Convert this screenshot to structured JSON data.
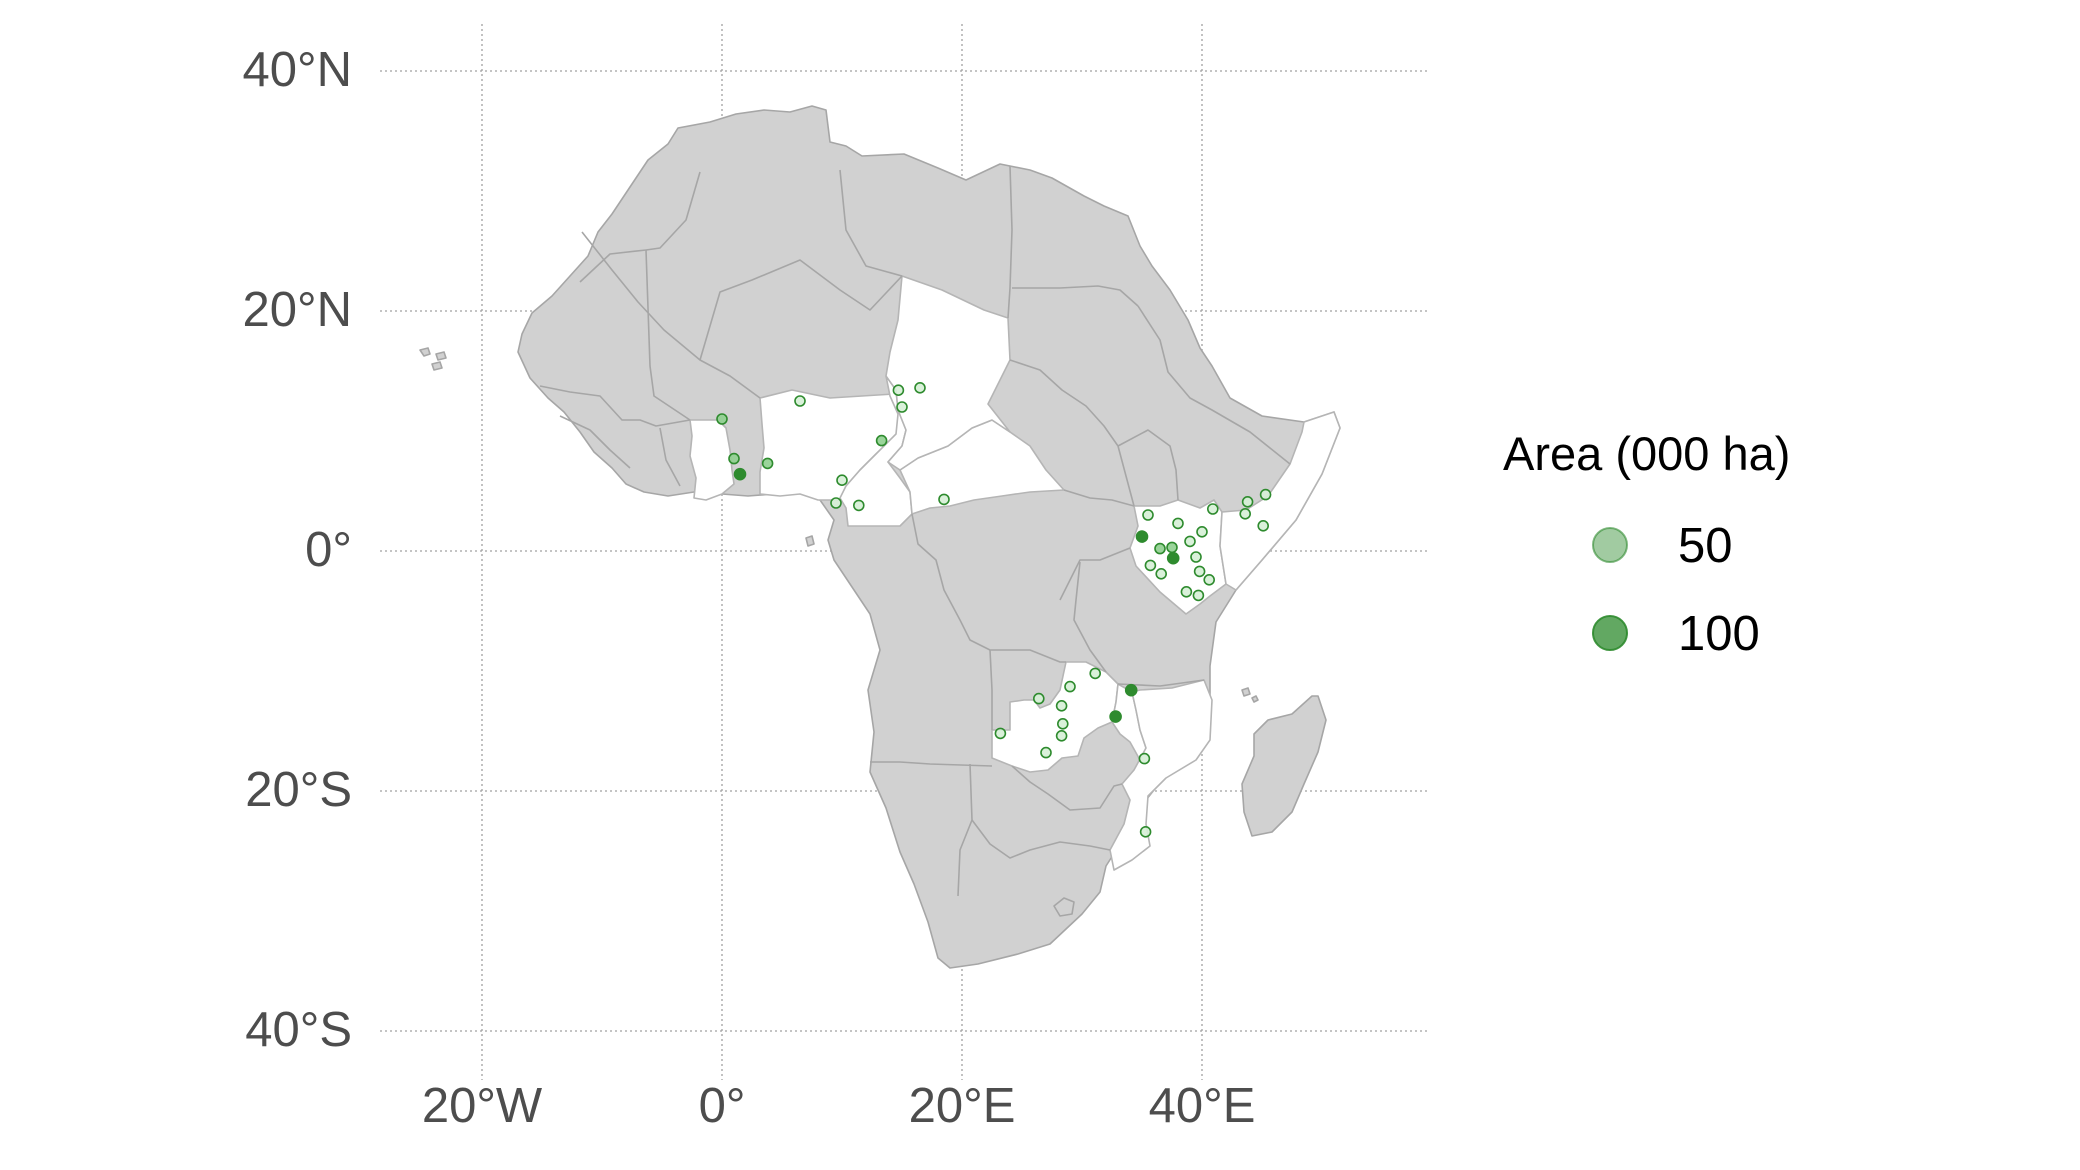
{
  "map": {
    "x_axis": {
      "ticks": [
        "20°W",
        "0°",
        "20°E",
        "40°E"
      ],
      "values": [
        -20,
        0,
        20,
        40
      ]
    },
    "y_axis": {
      "ticks": [
        "40°N",
        "20°N",
        "0°",
        "20°S",
        "40°S"
      ],
      "values": [
        40,
        20,
        0,
        -20,
        -40
      ]
    },
    "grid": "on",
    "colors": {
      "land": "#d1d1d1",
      "border": "#a6a6a6",
      "highlight_land": "#ffffff",
      "point": "#2e8b2e"
    },
    "highlighted_countries": [
      "Ghana",
      "Nigeria",
      "Cameroon",
      "Central African Republic",
      "Chad",
      "Kenya",
      "Somalia",
      "Zambia",
      "Malawi",
      "Mozambique"
    ],
    "legend": {
      "title": "Area (000 ha)",
      "position": "right",
      "items": [
        {
          "label": "50",
          "size": 50,
          "opacity": 0.45
        },
        {
          "label": "100",
          "size": 100,
          "opacity": 0.75
        }
      ]
    },
    "points": [
      {
        "lon": 0.0,
        "lat": 11.0,
        "area": 60
      },
      {
        "lon": 1.0,
        "lat": 7.7,
        "area": 60
      },
      {
        "lon": 1.5,
        "lat": 6.4,
        "area": 100
      },
      {
        "lon": 3.8,
        "lat": 7.3,
        "area": 55
      },
      {
        "lon": 6.5,
        "lat": 12.5,
        "area": 45
      },
      {
        "lon": 10.0,
        "lat": 5.9,
        "area": 50
      },
      {
        "lon": 9.5,
        "lat": 4.0,
        "area": 45
      },
      {
        "lon": 11.4,
        "lat": 3.8,
        "area": 45
      },
      {
        "lon": 13.3,
        "lat": 9.2,
        "area": 55
      },
      {
        "lon": 14.7,
        "lat": 13.4,
        "area": 45
      },
      {
        "lon": 15.0,
        "lat": 12.0,
        "area": 45
      },
      {
        "lon": 16.5,
        "lat": 13.6,
        "area": 45
      },
      {
        "lon": 18.5,
        "lat": 4.3,
        "area": 45
      },
      {
        "lon": 35.0,
        "lat": 1.2,
        "area": 100
      },
      {
        "lon": 35.5,
        "lat": 3.0,
        "area": 45
      },
      {
        "lon": 36.5,
        "lat": 0.2,
        "area": 60
      },
      {
        "lon": 37.5,
        "lat": 0.3,
        "area": 55
      },
      {
        "lon": 37.6,
        "lat": -0.6,
        "area": 100
      },
      {
        "lon": 38.0,
        "lat": 2.3,
        "area": 45
      },
      {
        "lon": 35.7,
        "lat": -1.2,
        "area": 45
      },
      {
        "lon": 36.6,
        "lat": -1.9,
        "area": 45
      },
      {
        "lon": 39.0,
        "lat": 0.8,
        "area": 45
      },
      {
        "lon": 39.5,
        "lat": -0.5,
        "area": 45
      },
      {
        "lon": 40.0,
        "lat": 1.6,
        "area": 45
      },
      {
        "lon": 39.8,
        "lat": -1.7,
        "area": 45
      },
      {
        "lon": 40.6,
        "lat": -2.4,
        "area": 45
      },
      {
        "lon": 38.7,
        "lat": -3.4,
        "area": 45
      },
      {
        "lon": 39.7,
        "lat": -3.7,
        "area": 50
      },
      {
        "lon": 40.9,
        "lat": 3.5,
        "area": 45
      },
      {
        "lon": 43.8,
        "lat": 4.1,
        "area": 45
      },
      {
        "lon": 43.6,
        "lat": 3.1,
        "area": 45
      },
      {
        "lon": 45.3,
        "lat": 4.7,
        "area": 45
      },
      {
        "lon": 45.1,
        "lat": 2.1,
        "area": 45
      },
      {
        "lon": 29.0,
        "lat": -11.3,
        "area": 45
      },
      {
        "lon": 31.1,
        "lat": -10.2,
        "area": 45
      },
      {
        "lon": 34.1,
        "lat": -11.6,
        "area": 100
      },
      {
        "lon": 26.4,
        "lat": -12.3,
        "area": 45
      },
      {
        "lon": 28.3,
        "lat": -12.9,
        "area": 45
      },
      {
        "lon": 28.4,
        "lat": -14.4,
        "area": 45
      },
      {
        "lon": 28.3,
        "lat": -15.4,
        "area": 45
      },
      {
        "lon": 23.2,
        "lat": -15.2,
        "area": 45
      },
      {
        "lon": 27.0,
        "lat": -16.8,
        "area": 45
      },
      {
        "lon": 32.8,
        "lat": -13.8,
        "area": 90
      },
      {
        "lon": 35.2,
        "lat": -17.3,
        "area": 45
      },
      {
        "lon": 35.3,
        "lat": -23.4,
        "area": 45
      }
    ]
  }
}
